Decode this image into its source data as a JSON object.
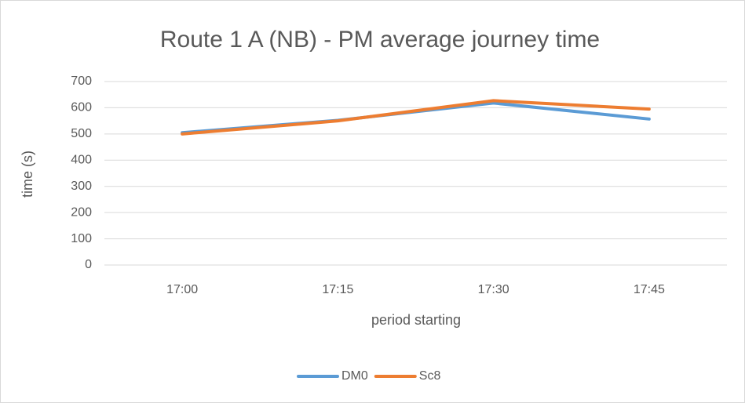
{
  "chart_data": {
    "type": "line",
    "title": "Route 1 A (NB) - PM average journey time",
    "x_label": "period starting",
    "y_label": "time (s)",
    "categories": [
      "17:00",
      "17:15",
      "17:30",
      "17:45"
    ],
    "series": [
      {
        "name": "DM0",
        "color": "#5b9bd5",
        "values": [
          505,
          552,
          618,
          557
        ]
      },
      {
        "name": "Sc8",
        "color": "#ed7d31",
        "values": [
          500,
          550,
          627,
          595
        ]
      }
    ],
    "ylim": [
      0,
      700
    ],
    "yticks": [
      0,
      100,
      200,
      300,
      400,
      500,
      600,
      700
    ],
    "grid": true,
    "legend": "bottom"
  }
}
